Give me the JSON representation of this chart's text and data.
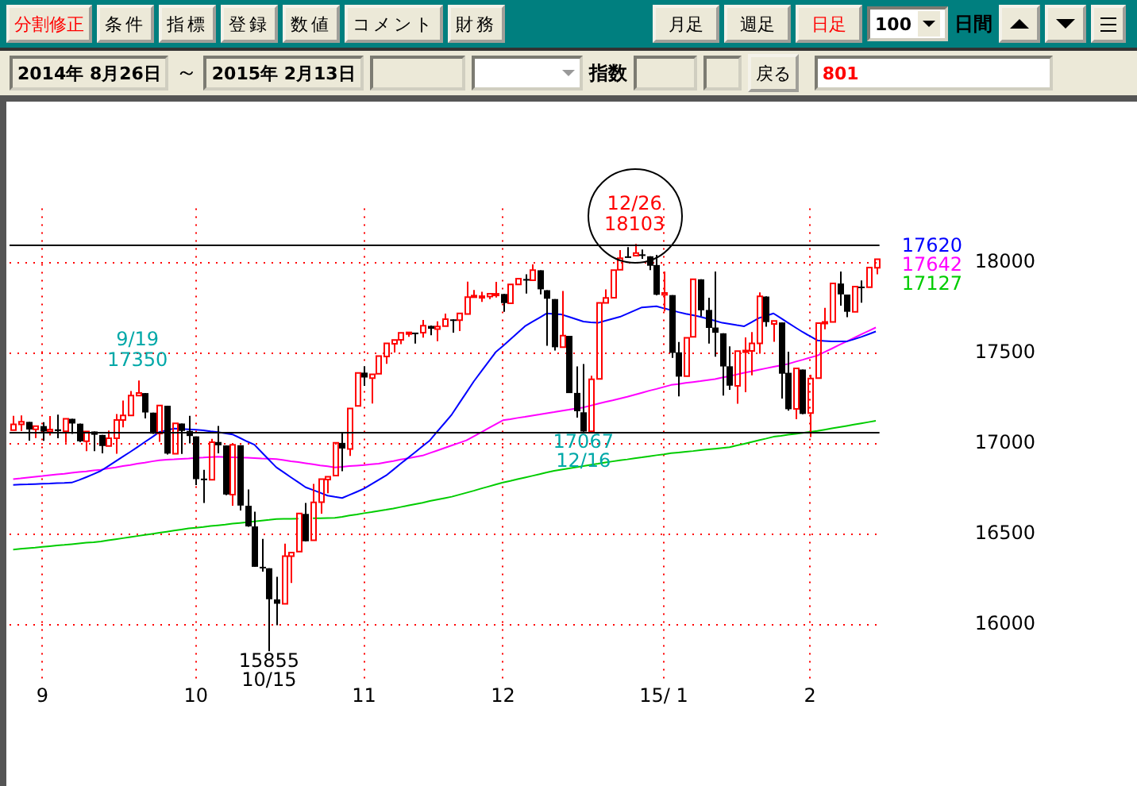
{
  "chart_data": {
    "type": "candlestick",
    "categories": [
      null,
      null,
      null,
      null,
      "9",
      null,
      null,
      null,
      null,
      null,
      null,
      null,
      null,
      null,
      null,
      null,
      null,
      null,
      null,
      null,
      null,
      null,
      null,
      null,
      null,
      "10",
      null,
      null,
      null,
      null,
      null,
      null,
      null,
      null,
      null,
      null,
      null,
      null,
      null,
      null,
      null,
      null,
      null,
      null,
      null,
      null,
      null,
      null,
      "11",
      null,
      null,
      null,
      null,
      null,
      null,
      null,
      null,
      null,
      null,
      null,
      null,
      null,
      null,
      null,
      null,
      null,
      null,
      "12",
      null,
      null,
      null,
      null,
      null,
      null,
      null,
      null,
      null,
      null,
      null,
      null,
      null,
      null,
      null,
      null,
      null,
      null,
      null,
      null,
      null,
      "15/ 1",
      null,
      null,
      null,
      null,
      null,
      null,
      null,
      null,
      null,
      null,
      null,
      null,
      null,
      null,
      null,
      null,
      null,
      null,
      null,
      "2",
      null,
      null,
      null,
      null,
      null,
      null,
      null,
      null,
      null
    ],
    "ohlc": [
      [
        17076,
        17154,
        17076,
        17107
      ],
      [
        17107,
        17157,
        17070,
        17122
      ],
      [
        17121,
        17121,
        17017,
        17079
      ],
      [
        17080,
        17111,
        17032,
        17098
      ],
      [
        17098,
        17119,
        17016,
        17068
      ],
      [
        17068,
        17153,
        17046,
        17079
      ],
      [
        17080,
        17161,
        17031,
        17070
      ],
      [
        17069,
        17145,
        17006,
        17138
      ],
      [
        17138,
        17138,
        17055,
        17112
      ],
      [
        17111,
        17112,
        17010,
        17014
      ],
      [
        17014,
        17069,
        16960,
        17068
      ],
      [
        17068,
        17068,
        16960,
        17050
      ],
      [
        17049,
        17049,
        16947,
        16988
      ],
      [
        16988,
        17073,
        16988,
        17031
      ],
      [
        17031,
        17164,
        16945,
        17132
      ],
      [
        17131,
        17239,
        17091,
        17157
      ],
      [
        17157,
        17291,
        17157,
        17266
      ],
      [
        17266,
        17350,
        17266,
        17280
      ],
      [
        17280,
        17280,
        17140,
        17173
      ],
      [
        17172,
        17172,
        17055,
        17056
      ],
      [
        17057,
        17221,
        17011,
        17211
      ],
      [
        17210,
        17210,
        16941,
        16946
      ],
      [
        16945,
        17125,
        16945,
        17113
      ],
      [
        17112,
        17112,
        16944,
        17071
      ],
      [
        17071,
        17154,
        17002,
        17043
      ],
      [
        17041,
        17041,
        16772,
        16805
      ],
      [
        16808,
        16857,
        16674,
        16802
      ],
      [
        16802,
        17027,
        16802,
        17009
      ],
      [
        17010,
        17099,
        16947,
        16992
      ],
      [
        16991,
        16991,
        16716,
        16720
      ],
      [
        16720,
        17000,
        16658,
        16995
      ],
      [
        16992,
        16992,
        16632,
        16659
      ],
      [
        16658,
        16748,
        16542,
        16544
      ],
      [
        16544,
        16625,
        16321,
        16321
      ],
      [
        16321,
        16475,
        16294,
        16316
      ],
      [
        16313,
        16313,
        15855,
        16142
      ],
      [
        16141,
        16266,
        15999,
        16117
      ],
      [
        16117,
        16449,
        16117,
        16380
      ],
      [
        16380,
        16405,
        16232,
        16400
      ],
      [
        16405,
        16615,
        16405,
        16615
      ],
      [
        16613,
        16674,
        16461,
        16462
      ],
      [
        16467,
        16779,
        16467,
        16677
      ],
      [
        16678,
        16805,
        16614,
        16805
      ],
      [
        16803,
        16829,
        16727,
        16818
      ],
      [
        16825,
        17005,
        16825,
        17005
      ],
      [
        17005,
        17061,
        16849,
        16974
      ],
      [
        16971,
        17206,
        16933,
        17195
      ],
      [
        17209,
        17395,
        17209,
        17391
      ],
      [
        17393,
        17428,
        17320,
        17366
      ],
      [
        17363,
        17395,
        17222,
        17384
      ],
      [
        17387,
        17484,
        17387,
        17484
      ],
      [
        17482,
        17557,
        17442,
        17554
      ],
      [
        17552,
        17579,
        17504,
        17573
      ],
      [
        17574,
        17618,
        17550,
        17613
      ],
      [
        17614,
        17625,
        17591,
        17615
      ],
      [
        17614,
        17614,
        17553,
        17612
      ],
      [
        17614,
        17684,
        17586,
        17652
      ],
      [
        17651,
        17653,
        17599,
        17635
      ],
      [
        17633,
        17676,
        17566,
        17648
      ],
      [
        17650,
        17719,
        17650,
        17688
      ],
      [
        17687,
        17687,
        17614,
        17686
      ],
      [
        17683,
        17731,
        17622,
        17720
      ],
      [
        17717,
        17895,
        17717,
        17810
      ],
      [
        17810,
        17849,
        17803,
        17818
      ],
      [
        17814,
        17839,
        17783,
        17815
      ],
      [
        17813,
        17840,
        17799,
        17828
      ],
      [
        17828,
        17894,
        17808,
        17828
      ],
      [
        17827,
        17827,
        17729,
        17777
      ],
      [
        17776,
        17880,
        17776,
        17880
      ],
      [
        17880,
        17924,
        17880,
        17912
      ],
      [
        17910,
        17936,
        17830,
        17901
      ],
      [
        17903,
        17991,
        17903,
        17959
      ],
      [
        17958,
        17958,
        17825,
        17853
      ],
      [
        17848,
        17848,
        17541,
        17801
      ],
      [
        17799,
        17799,
        17515,
        17533
      ],
      [
        17534,
        17844,
        17534,
        17597
      ],
      [
        17596,
        17596,
        17280,
        17280
      ],
      [
        17281,
        17427,
        17145,
        17180
      ],
      [
        17174,
        17441,
        17067,
        17068
      ],
      [
        17069,
        17376,
        17069,
        17356
      ],
      [
        17358,
        17778,
        17358,
        17778
      ],
      [
        17778,
        17853,
        17778,
        17805
      ],
      [
        17806,
        17959,
        17806,
        17959
      ],
      [
        17961,
        18069,
        17961,
        18024
      ],
      [
        18035,
        18086,
        18027,
        18031
      ],
      [
        18039,
        18103,
        18039,
        18053
      ],
      [
        18046,
        18073,
        18021,
        18039
      ],
      [
        18035,
        18035,
        17959,
        17983
      ],
      [
        17987,
        18043,
        17820,
        17823
      ],
      [
        17823,
        17951,
        17731,
        17833
      ],
      [
        17821,
        17821,
        17475,
        17502
      ],
      [
        17505,
        17562,
        17262,
        17371
      ],
      [
        17374,
        17597,
        17374,
        17585
      ],
      [
        17591,
        17916,
        17591,
        17908
      ],
      [
        17908,
        17908,
        17704,
        17737
      ],
      [
        17739,
        17806,
        17553,
        17640
      ],
      [
        17642,
        17951,
        17481,
        17613
      ],
      [
        17610,
        17610,
        17266,
        17427
      ],
      [
        17428,
        17538,
        17298,
        17321
      ],
      [
        17320,
        17514,
        17221,
        17512
      ],
      [
        17512,
        17587,
        17285,
        17515
      ],
      [
        17513,
        17617,
        17378,
        17554
      ],
      [
        17555,
        17836,
        17497,
        17814
      ],
      [
        17813,
        17814,
        17647,
        17672
      ],
      [
        17662,
        17679,
        17563,
        17678
      ],
      [
        17670,
        17670,
        17250,
        17387
      ],
      [
        17392,
        17508,
        17183,
        17191
      ],
      [
        17193,
        17429,
        17136,
        17416
      ],
      [
        17410,
        17410,
        17163,
        17165
      ],
      [
        17170,
        17381,
        17037,
        17361
      ],
      [
        17363,
        17666,
        17363,
        17666
      ],
      [
        17664,
        17751,
        17632,
        17673
      ],
      [
        17673,
        17889,
        17673,
        17885
      ],
      [
        17885,
        17951,
        17763,
        17825
      ],
      [
        17824,
        17824,
        17699,
        17729
      ],
      [
        17729,
        17868,
        17729,
        17868
      ],
      [
        17868,
        17902,
        17779,
        17862
      ],
      [
        17865,
        17974,
        17865,
        17973
      ],
      [
        17972,
        18020,
        17936,
        18019
      ]
    ],
    "series": [
      {
        "type": "line",
        "color": "#0000ff",
        "values": [
          16773,
          16775,
          16776,
          16778,
          16780,
          16781,
          16783,
          16784,
          16786,
          16800,
          16816,
          16833,
          16851,
          16877,
          16903,
          16929,
          16955,
          16982,
          17010,
          17037,
          17065,
          17075,
          17084,
          17082,
          17080,
          17078,
          17074,
          17069,
          17065,
          17058,
          17052,
          17033,
          17013,
          16995,
          16953,
          16911,
          16870,
          16843,
          16815,
          16788,
          16760,
          16745,
          16730,
          16714,
          16707,
          16701,
          16718,
          16735,
          16753,
          16777,
          16801,
          16825,
          16857,
          16890,
          16922,
          16954,
          16987,
          17019,
          17067,
          17114,
          17162,
          17223,
          17283,
          17344,
          17398,
          17452,
          17506,
          17540,
          17576,
          17613,
          17649,
          17673,
          17696,
          17720,
          17717,
          17714,
          17701,
          17688,
          17675,
          17671,
          17668,
          17679,
          17690,
          17701,
          17718,
          17736,
          17753,
          17756,
          17759,
          17748,
          17738,
          17727,
          17718,
          17710,
          17701,
          17690,
          17679,
          17668,
          17662,
          17655,
          17649,
          17671,
          17694,
          17707,
          17720,
          17694,
          17668,
          17642,
          17617,
          17594,
          17571,
          17568,
          17565,
          17565,
          17565,
          17577,
          17590,
          17605,
          17620
        ]
      },
      {
        "type": "line",
        "color": "#ff00ff",
        "values": [
          16805,
          16809,
          16814,
          16818,
          16822,
          16827,
          16831,
          16835,
          16840,
          16844,
          16848,
          16853,
          16857,
          16864,
          16870,
          16877,
          16883,
          16890,
          16896,
          16903,
          16909,
          16912,
          16914,
          16917,
          16919,
          16922,
          16924,
          16927,
          16929,
          16927,
          16926,
          16924,
          16923,
          16921,
          16919,
          16918,
          16916,
          16910,
          16904,
          16899,
          16893,
          16887,
          16881,
          16876,
          16870,
          16873,
          16877,
          16880,
          16883,
          16887,
          16890,
          16898,
          16905,
          16913,
          16920,
          16928,
          16935,
          16949,
          16963,
          16977,
          16991,
          17005,
          17019,
          17041,
          17063,
          17086,
          17108,
          17130,
          17136,
          17143,
          17149,
          17156,
          17162,
          17169,
          17175,
          17182,
          17188,
          17195,
          17201,
          17211,
          17221,
          17231,
          17240,
          17250,
          17260,
          17271,
          17282,
          17293,
          17303,
          17314,
          17325,
          17330,
          17336,
          17341,
          17346,
          17352,
          17357,
          17366,
          17374,
          17383,
          17392,
          17400,
          17409,
          17417,
          17425,
          17433,
          17441,
          17453,
          17464,
          17476,
          17487,
          17507,
          17526,
          17546,
          17565,
          17584,
          17604,
          17623,
          17642
        ]
      },
      {
        "type": "line",
        "color": "#00cc00",
        "values": [
          16416,
          16420,
          16424,
          16427,
          16431,
          16435,
          16439,
          16442,
          16446,
          16450,
          16454,
          16457,
          16461,
          16467,
          16473,
          16479,
          16485,
          16491,
          16497,
          16503,
          16509,
          16515,
          16521,
          16527,
          16533,
          16537,
          16541,
          16546,
          16550,
          16554,
          16559,
          16563,
          16567,
          16572,
          16576,
          16580,
          16585,
          16586,
          16586,
          16587,
          null,
          16589,
          16589,
          16590,
          16591,
          16597,
          16604,
          16610,
          16617,
          16623,
          16630,
          16636,
          16643,
          16651,
          16659,
          16667,
          16675,
          16684,
          16692,
          16700,
          16708,
          16719,
          16730,
          16741,
          16753,
          16764,
          16775,
          16786,
          16795,
          16805,
          16814,
          16823,
          16832,
          16842,
          16851,
          16858,
          16864,
          16871,
          16877,
          16884,
          16890,
          16897,
          16903,
          16909,
          16914,
          16920,
          16925,
          16931,
          16937,
          16942,
          16948,
          16952,
          16956,
          16960,
          16965,
          16969,
          16973,
          16977,
          16981,
          16991,
          17000,
          17010,
          17020,
          17029,
          17039,
          17044,
          17050,
          17055,
          17060,
          17066,
          17071,
          17078,
          17085,
          17092,
          17099,
          17106,
          17113,
          17120,
          17127
        ]
      }
    ],
    "ylim": [
      15700,
      18300
    ],
    "yticks": [
      16000,
      16500,
      17000,
      17500,
      18000
    ],
    "grid": true,
    "legend": false,
    "marker": "none",
    "line_style": "solid",
    "ref_lines": [
      {
        "axis": "y",
        "value": 18103,
        "color": "#000000"
      },
      {
        "axis": "y",
        "value": 17067,
        "color": "#000000"
      }
    ],
    "annotations": [
      "分割修正",
      "条件",
      "指標",
      "登録",
      "数値",
      "コメント",
      "財務",
      "月足",
      "週足",
      "日足",
      "100",
      "日間",
      "2014年 8月26日",
      "～",
      "2015年 2月13日",
      "指数",
      "戻る",
      "801",
      "17620",
      "17642",
      "17127",
      {
        "text": "9/19 17350",
        "y": 17350
      },
      {
        "text": "15855 10/15",
        "y": 15855
      },
      {
        "text": "12/26 18103",
        "y": 18103
      },
      {
        "text": "17067 12/16",
        "y": 17067
      }
    ]
  }
}
